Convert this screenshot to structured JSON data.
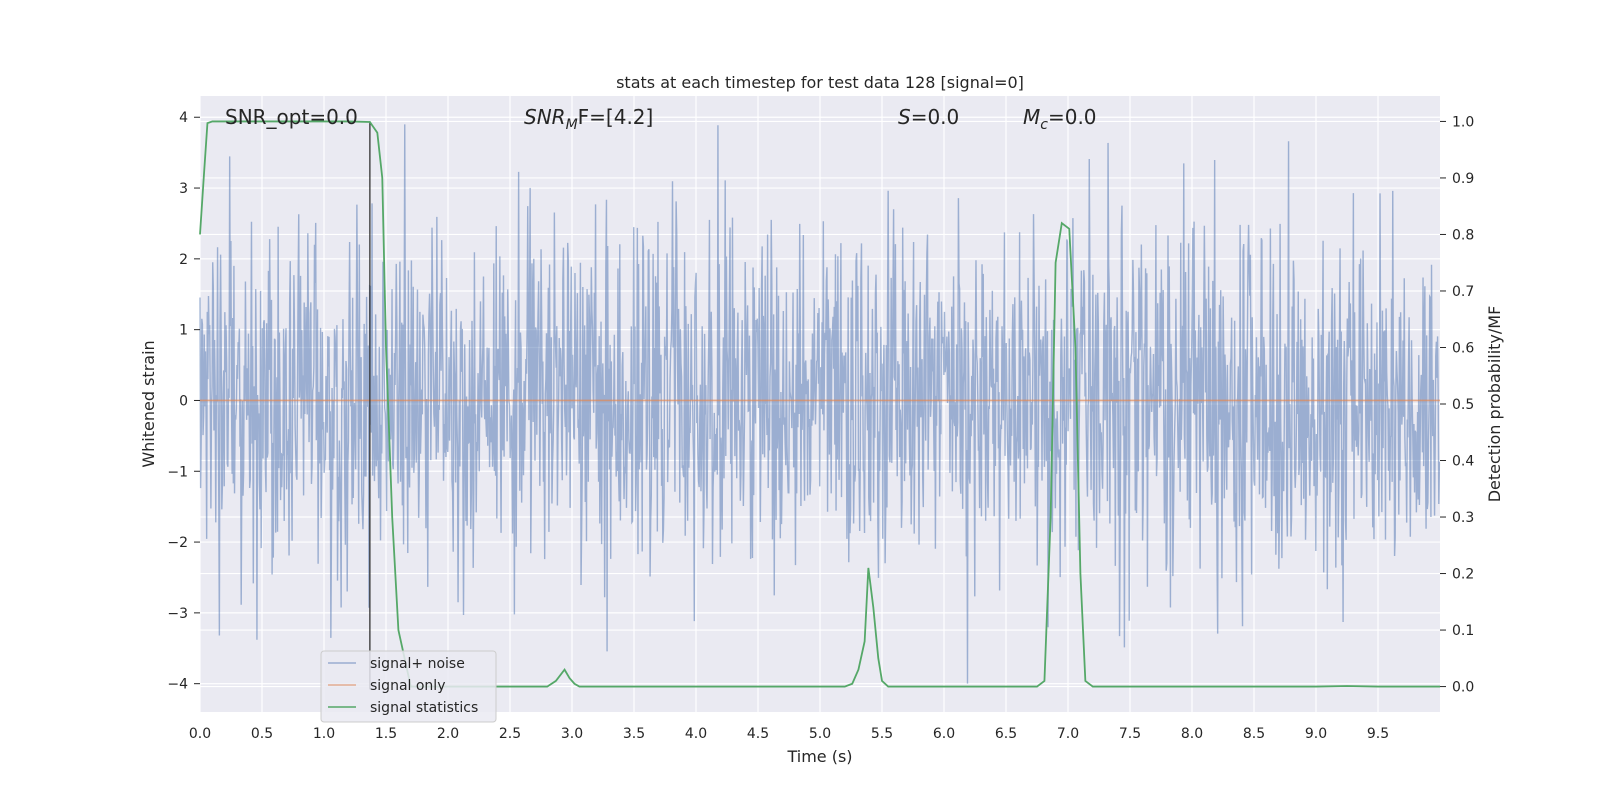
{
  "chart_data": {
    "type": "line",
    "title": "stats at each timestep for test data 128 [signal=0]",
    "xlabel": "Time (s)",
    "ylabel": "Whitened strain",
    "y2label": "Detection probability/MF",
    "xlim": [
      0.0,
      10.0
    ],
    "ylim": [
      -4.4,
      4.3
    ],
    "y2lim": [
      -0.045,
      1.045
    ],
    "xticks": [
      "0.0",
      "0.5",
      "1.0",
      "1.5",
      "2.0",
      "2.5",
      "3.0",
      "3.5",
      "4.0",
      "4.5",
      "5.0",
      "5.5",
      "6.0",
      "6.5",
      "7.0",
      "7.5",
      "8.0",
      "8.5",
      "9.0",
      "9.5"
    ],
    "yticks": [
      "4",
      "3",
      "2",
      "1",
      "0",
      "−1",
      "−2",
      "−3",
      "−4"
    ],
    "y2ticks": [
      "1.0",
      "0.9",
      "0.8",
      "0.7",
      "0.6",
      "0.5",
      "0.4",
      "0.3",
      "0.2",
      "0.1",
      "0.0"
    ],
    "annotations": {
      "snr_opt": "SNR_opt=0.0",
      "snr_mf_base": "SNR",
      "snr_mf_sub": "M",
      "snr_mf_rest": "F=[4.2]",
      "s_label": "S",
      "s_rest": "=0.0",
      "mc_base": "M",
      "mc_sub": "c",
      "mc_rest": "=0.0"
    },
    "vline_x": 1.37,
    "legend": {
      "placement": "lower-left",
      "entries": [
        "signal+ noise",
        "signal only",
        "signal statistics"
      ]
    },
    "series": [
      {
        "name": "signal+ noise",
        "color": "#4c72b0",
        "noise_amplitude_std": 1.2,
        "y_range_observed": [
          -4.0,
          3.9
        ]
      },
      {
        "name": "signal only",
        "color": "#dd8452",
        "x": [
          0.0,
          10.0
        ],
        "y": [
          0.0,
          0.0
        ]
      },
      {
        "name": "signal statistics",
        "color": "#55a868",
        "x": [
          0.0,
          0.03,
          0.06,
          0.1,
          0.2,
          0.5,
          1.0,
          1.2,
          1.37,
          1.43,
          1.47,
          1.5,
          1.55,
          1.6,
          1.7,
          2.0,
          2.5,
          2.8,
          2.87,
          2.94,
          2.98,
          3.02,
          3.06,
          3.5,
          4.0,
          4.5,
          5.0,
          5.2,
          5.26,
          5.31,
          5.36,
          5.39,
          5.43,
          5.47,
          5.5,
          5.55,
          6.0,
          6.5,
          6.75,
          6.81,
          6.86,
          6.9,
          6.95,
          7.01,
          7.06,
          7.1,
          7.14,
          7.2,
          7.5,
          8.0,
          8.5,
          9.0,
          9.25,
          9.5,
          10.0
        ],
        "y": [
          0.8,
          0.9,
          0.997,
          1.0,
          1.0,
          1.0,
          1.0,
          1.0,
          0.999,
          0.98,
          0.9,
          0.6,
          0.3,
          0.1,
          0.0,
          0.0,
          0.0,
          0.0,
          0.01,
          0.03,
          0.015,
          0.005,
          0.0,
          0.0,
          0.0,
          0.0,
          0.0,
          0.0,
          0.005,
          0.03,
          0.08,
          0.21,
          0.14,
          0.05,
          0.01,
          0.0,
          0.0,
          0.0,
          0.0,
          0.01,
          0.3,
          0.75,
          0.82,
          0.81,
          0.6,
          0.2,
          0.01,
          0.0,
          0.0,
          0.0,
          0.0,
          0.0,
          0.001,
          0.0,
          0.0
        ]
      }
    ]
  }
}
